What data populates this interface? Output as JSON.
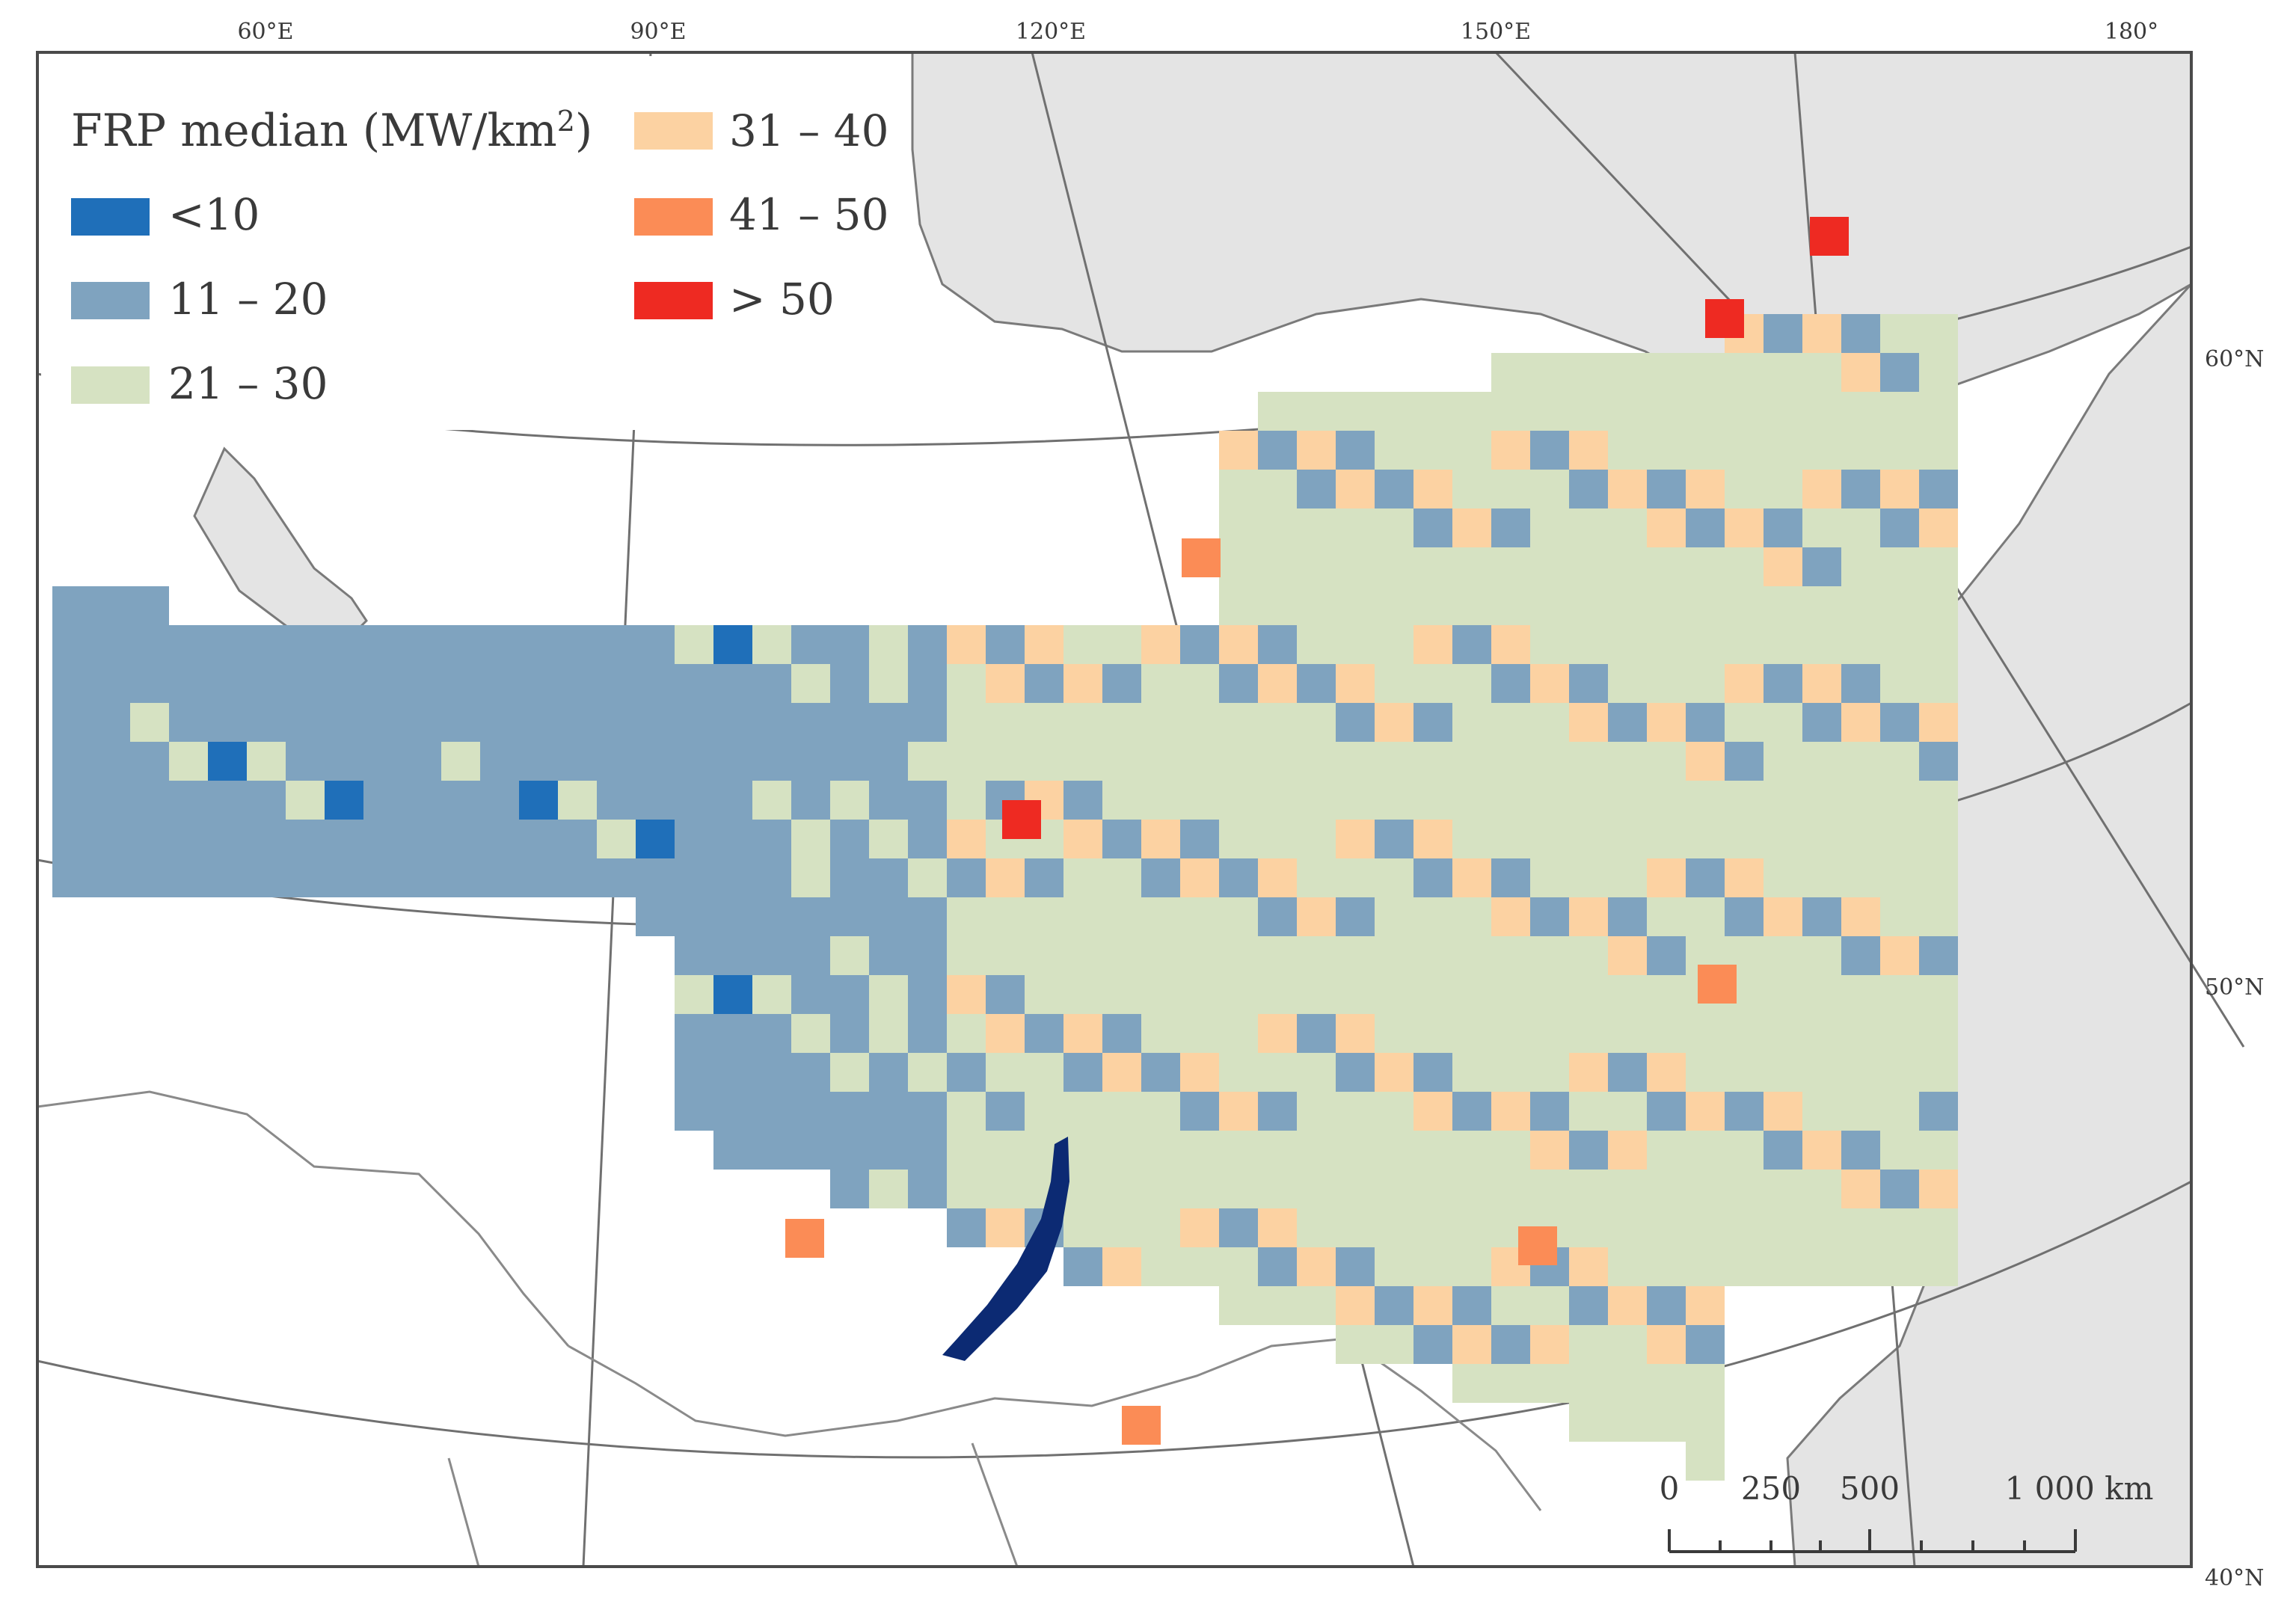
{
  "legend": {
    "title": "FRP median (MW/km",
    "title_sup": "2",
    "title_close": ")",
    "classes": [
      {
        "label": "<10",
        "color": "#1f6fb9"
      },
      {
        "label": "11 – 20",
        "color": "#7fa3bf"
      },
      {
        "label": "21 – 30",
        "color": "#d6e2c2"
      },
      {
        "label": "31 – 40",
        "color": "#fcd2a2"
      },
      {
        "label": "41 – 50",
        "color": "#fb8c56"
      },
      {
        "label": "> 50",
        "color": "#ee2a22"
      }
    ]
  },
  "lon_labels": [
    "60°E",
    "90°E",
    "120°E",
    "150°E",
    "180°"
  ],
  "lat_labels": [
    "60°N",
    "50°N",
    "40°N"
  ],
  "scale_bar": {
    "labels": [
      "0",
      "250",
      "500",
      "1 000 km"
    ]
  },
  "colors": {
    "land": "#e6e6e6",
    "outside_study": "#ffffff",
    "boundaries": "#8a8a8a",
    "lake_baikal": "#0c2a73",
    "frame": "#4a4a4a"
  }
}
